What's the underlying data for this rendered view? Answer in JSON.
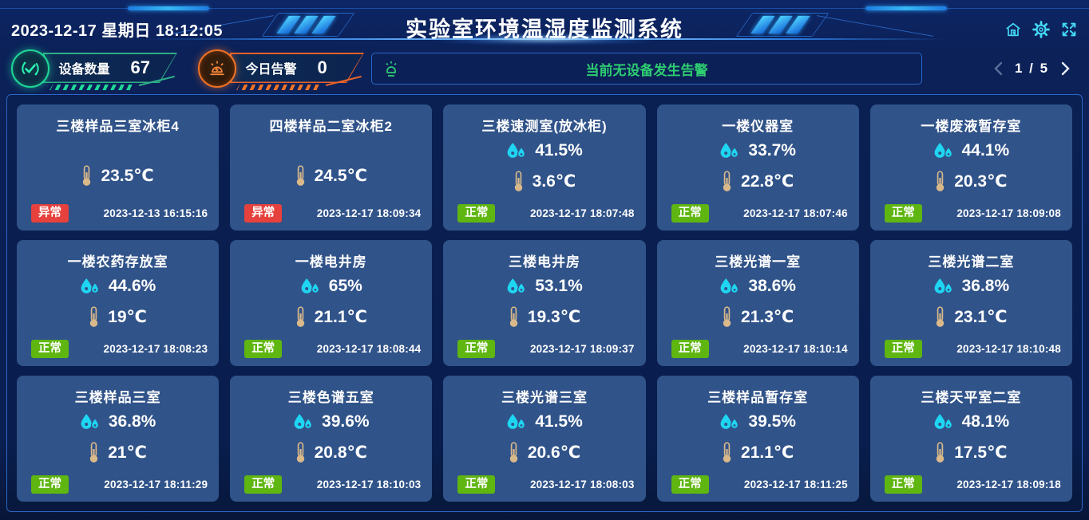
{
  "header": {
    "datetime": "2023-12-17 星期日 18:12:05",
    "title": "实验室环境温湿度监测系统",
    "icons": [
      "home-icon",
      "settings-icon",
      "fullscreen-icon"
    ]
  },
  "stats": {
    "device_count_label": "设备数量",
    "device_count_value": "67",
    "alarm_today_label": "今日告警",
    "alarm_today_value": "0"
  },
  "alert_bar": {
    "message": "当前无设备发生告警"
  },
  "pagination": {
    "current": "1",
    "total": "5",
    "display": "1 / 5"
  },
  "colors": {
    "normal": "#5fb611",
    "abnormal": "#e6413c",
    "humidity_icon": "#1fd6f2",
    "thermometer_icon": "#d9b98a",
    "alert_text": "#2ecc71",
    "device_accent": "#1fd898",
    "alarm_accent": "#f07226",
    "header_icon": "#45d9f5",
    "card_bg": "#305389"
  },
  "cards": [
    {
      "name": "三楼样品三室冰柜4",
      "humidity": null,
      "temperature": "23.5℃",
      "status": "异常",
      "status_type": "abnormal",
      "time": "2023-12-13 16:15:16"
    },
    {
      "name": "四楼样品二室冰柜2",
      "humidity": null,
      "temperature": "24.5℃",
      "status": "异常",
      "status_type": "abnormal",
      "time": "2023-12-17 18:09:34"
    },
    {
      "name": "三楼速测室(放冰柜)",
      "humidity": "41.5%",
      "temperature": "3.6℃",
      "status": "正常",
      "status_type": "normal",
      "time": "2023-12-17 18:07:48"
    },
    {
      "name": "一楼仪器室",
      "humidity": "33.7%",
      "temperature": "22.8℃",
      "status": "正常",
      "status_type": "normal",
      "time": "2023-12-17 18:07:46"
    },
    {
      "name": "一楼废液暂存室",
      "humidity": "44.1%",
      "temperature": "20.3℃",
      "status": "正常",
      "status_type": "normal",
      "time": "2023-12-17 18:09:08"
    },
    {
      "name": "一楼农药存放室",
      "humidity": "44.6%",
      "temperature": "19℃",
      "status": "正常",
      "status_type": "normal",
      "time": "2023-12-17 18:08:23"
    },
    {
      "name": "一楼电井房",
      "humidity": "65%",
      "temperature": "21.1℃",
      "status": "正常",
      "status_type": "normal",
      "time": "2023-12-17 18:08:44"
    },
    {
      "name": "三楼电井房",
      "humidity": "53.1%",
      "temperature": "19.3℃",
      "status": "正常",
      "status_type": "normal",
      "time": "2023-12-17 18:09:37"
    },
    {
      "name": "三楼光谱一室",
      "humidity": "38.6%",
      "temperature": "21.3℃",
      "status": "正常",
      "status_type": "normal",
      "time": "2023-12-17 18:10:14"
    },
    {
      "name": "三楼光谱二室",
      "humidity": "36.8%",
      "temperature": "23.1℃",
      "status": "正常",
      "status_type": "normal",
      "time": "2023-12-17 18:10:48"
    },
    {
      "name": "三楼样品三室",
      "humidity": "36.8%",
      "temperature": "21℃",
      "status": "正常",
      "status_type": "normal",
      "time": "2023-12-17 18:11:29"
    },
    {
      "name": "三楼色谱五室",
      "humidity": "39.6%",
      "temperature": "20.8℃",
      "status": "正常",
      "status_type": "normal",
      "time": "2023-12-17 18:10:03"
    },
    {
      "name": "三楼光谱三室",
      "humidity": "41.5%",
      "temperature": "20.6℃",
      "status": "正常",
      "status_type": "normal",
      "time": "2023-12-17 18:08:03"
    },
    {
      "name": "三楼样品暂存室",
      "humidity": "39.5%",
      "temperature": "21.1℃",
      "status": "正常",
      "status_type": "normal",
      "time": "2023-12-17 18:11:25"
    },
    {
      "name": "三楼天平室二室",
      "humidity": "48.1%",
      "temperature": "17.5℃",
      "status": "正常",
      "status_type": "normal",
      "time": "2023-12-17 18:09:18"
    }
  ]
}
